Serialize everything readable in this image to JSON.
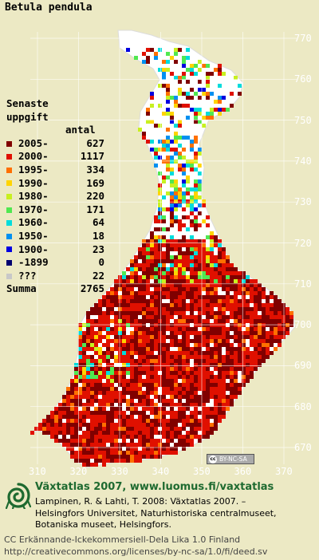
{
  "title": "Betula pendula",
  "legend": {
    "heading_line1": "Senaste",
    "heading_line2": "uppgift",
    "count_header": "antal",
    "items": [
      {
        "label": "2005-",
        "count": "627",
        "color": "#800000"
      },
      {
        "label": "2000-",
        "count": "1117",
        "color": "#e01000"
      },
      {
        "label": "1995-",
        "count": "334",
        "color": "#ff7000"
      },
      {
        "label": "1990-",
        "count": "169",
        "color": "#ffd400"
      },
      {
        "label": "1980-",
        "count": "220",
        "color": "#c8f020"
      },
      {
        "label": "1970-",
        "count": "171",
        "color": "#50e850"
      },
      {
        "label": "1960-",
        "count": "64",
        "color": "#00dcdc"
      },
      {
        "label": "1950-",
        "count": "18",
        "color": "#0090f0"
      },
      {
        "label": "1900-",
        "count": "23",
        "color": "#0000e0"
      },
      {
        "label": "-1899",
        "count": "0",
        "color": "#000070"
      },
      {
        "label": "???",
        "count": "22",
        "color": "#c8c8c8"
      }
    ],
    "sum_label": "Summa",
    "sum_count": "2765"
  },
  "map": {
    "y_ticks": [
      "770",
      "760",
      "750",
      "740",
      "730",
      "720",
      "710",
      "700",
      "690",
      "680",
      "670"
    ],
    "x_ticks": [
      "310",
      "320",
      "330",
      "340",
      "350",
      "360",
      "370"
    ],
    "background_color": "#ece9c4",
    "land_color": "#ffffff",
    "grid_color": "#ffffff"
  },
  "license_badge": "BY-NC-SA",
  "footer": {
    "title": "Växtatlas 2007, www.luomus.fi/vaxtatlas",
    "cite_line1": "Lampinen, R. & Lahti, T. 2008: Växtatlas 2007. –",
    "cite_line2": "Helsingfors Universitet, Naturhistoriska centralmuseet,",
    "cite_line3": "Botaniska museet, Helsingfors.",
    "cc_line1": "CC Erkännande-Ickekommersiell-Dela Lika 1.0 Finland",
    "cc_line2": "http://creativecommons.org/licenses/by-nc-sa/1.0/fi/deed.sv"
  }
}
